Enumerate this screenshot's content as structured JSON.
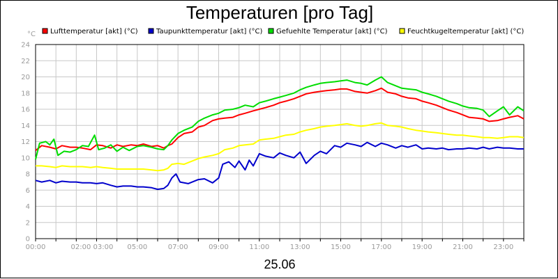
{
  "chart_data": {
    "type": "line",
    "title": "Temperaturen [pro Tag]",
    "date": "25.06",
    "y_unit": "°C",
    "ylim": [
      0,
      24
    ],
    "y_ticks": [
      0,
      2,
      4,
      6,
      8,
      10,
      12,
      14,
      16,
      18,
      20,
      22,
      24
    ],
    "xlim": [
      0,
      24
    ],
    "x_ticks": [
      {
        "x": 0,
        "label": "00:00"
      },
      {
        "x": 2,
        "label": "02:00"
      },
      {
        "x": 3,
        "label": "03:00"
      },
      {
        "x": 5,
        "label": "05:00"
      },
      {
        "x": 7,
        "label": "07:00"
      },
      {
        "x": 9,
        "label": "09:00"
      },
      {
        "x": 11,
        "label": "11:00"
      },
      {
        "x": 13,
        "label": "13:00"
      },
      {
        "x": 15,
        "label": "15:00"
      },
      {
        "x": 17,
        "label": "17:00"
      },
      {
        "x": 19,
        "label": "19:00"
      },
      {
        "x": 21,
        "label": "21:00"
      },
      {
        "x": 23,
        "label": "23:00"
      }
    ],
    "grid": true,
    "legend_position": "top",
    "series": [
      {
        "name": "Lufttemperatur [akt] (°C)",
        "color": "#ff0000",
        "points": [
          [
            0,
            10.9
          ],
          [
            0.3,
            11.5
          ],
          [
            0.7,
            11.3
          ],
          [
            1,
            11.1
          ],
          [
            1.3,
            11.5
          ],
          [
            1.7,
            11.3
          ],
          [
            2,
            11.3
          ],
          [
            2.3,
            11.2
          ],
          [
            2.7,
            11.0
          ],
          [
            3,
            11.6
          ],
          [
            3.3,
            11.5
          ],
          [
            3.7,
            11.2
          ],
          [
            4,
            11.6
          ],
          [
            4.3,
            11.4
          ],
          [
            4.7,
            11.6
          ],
          [
            5,
            11.5
          ],
          [
            5.3,
            11.7
          ],
          [
            5.7,
            11.4
          ],
          [
            6,
            11.5
          ],
          [
            6.3,
            11.2
          ],
          [
            6.5,
            11.5
          ],
          [
            6.7,
            11.7
          ],
          [
            7,
            12.5
          ],
          [
            7.3,
            13.0
          ],
          [
            7.7,
            13.2
          ],
          [
            8,
            13.8
          ],
          [
            8.3,
            14.0
          ],
          [
            8.7,
            14.6
          ],
          [
            9,
            14.8
          ],
          [
            9.3,
            14.9
          ],
          [
            9.7,
            15.0
          ],
          [
            10,
            15.3
          ],
          [
            10.3,
            15.5
          ],
          [
            10.7,
            15.8
          ],
          [
            11,
            16.0
          ],
          [
            11.3,
            16.2
          ],
          [
            11.7,
            16.5
          ],
          [
            12,
            16.8
          ],
          [
            12.3,
            17.0
          ],
          [
            12.7,
            17.3
          ],
          [
            13,
            17.6
          ],
          [
            13.3,
            17.9
          ],
          [
            13.7,
            18.1
          ],
          [
            14,
            18.2
          ],
          [
            14.3,
            18.3
          ],
          [
            14.7,
            18.4
          ],
          [
            15,
            18.5
          ],
          [
            15.3,
            18.5
          ],
          [
            15.7,
            18.2
          ],
          [
            16,
            18.1
          ],
          [
            16.3,
            18.0
          ],
          [
            16.7,
            18.3
          ],
          [
            17,
            18.6
          ],
          [
            17.3,
            18.1
          ],
          [
            17.7,
            17.9
          ],
          [
            18,
            17.6
          ],
          [
            18.3,
            17.4
          ],
          [
            18.7,
            17.3
          ],
          [
            19,
            17.0
          ],
          [
            19.3,
            16.8
          ],
          [
            19.7,
            16.5
          ],
          [
            20,
            16.2
          ],
          [
            20.3,
            15.9
          ],
          [
            20.7,
            15.6
          ],
          [
            21,
            15.3
          ],
          [
            21.3,
            15.0
          ],
          [
            21.7,
            14.9
          ],
          [
            22,
            14.8
          ],
          [
            22.3,
            14.5
          ],
          [
            22.7,
            14.6
          ],
          [
            23,
            14.8
          ],
          [
            23.3,
            15.0
          ],
          [
            23.7,
            15.2
          ],
          [
            24,
            14.8
          ]
        ]
      },
      {
        "name": "Taupunkttemperatur [akt] (°C)",
        "color": "#0000cc",
        "points": [
          [
            0,
            7.2
          ],
          [
            0.3,
            7.0
          ],
          [
            0.7,
            7.2
          ],
          [
            1,
            6.9
          ],
          [
            1.3,
            7.1
          ],
          [
            1.7,
            7.0
          ],
          [
            2,
            7.0
          ],
          [
            2.3,
            6.9
          ],
          [
            2.7,
            6.9
          ],
          [
            3,
            6.8
          ],
          [
            3.3,
            6.9
          ],
          [
            3.7,
            6.6
          ],
          [
            4,
            6.4
          ],
          [
            4.3,
            6.5
          ],
          [
            4.7,
            6.5
          ],
          [
            5,
            6.4
          ],
          [
            5.3,
            6.4
          ],
          [
            5.7,
            6.3
          ],
          [
            6,
            6.1
          ],
          [
            6.3,
            6.2
          ],
          [
            6.5,
            6.6
          ],
          [
            6.7,
            7.5
          ],
          [
            6.9,
            8.0
          ],
          [
            7.1,
            7.0
          ],
          [
            7.5,
            6.8
          ],
          [
            8,
            7.3
          ],
          [
            8.3,
            7.4
          ],
          [
            8.7,
            6.9
          ],
          [
            9,
            7.5
          ],
          [
            9.2,
            9.2
          ],
          [
            9.5,
            9.5
          ],
          [
            9.8,
            8.8
          ],
          [
            10,
            9.6
          ],
          [
            10.3,
            8.5
          ],
          [
            10.5,
            9.7
          ],
          [
            10.7,
            9.0
          ],
          [
            11,
            10.5
          ],
          [
            11.3,
            10.2
          ],
          [
            11.7,
            10.0
          ],
          [
            12,
            10.6
          ],
          [
            12.3,
            10.3
          ],
          [
            12.7,
            10.0
          ],
          [
            13,
            10.7
          ],
          [
            13.3,
            9.3
          ],
          [
            13.7,
            10.3
          ],
          [
            14,
            10.8
          ],
          [
            14.3,
            10.5
          ],
          [
            14.7,
            11.5
          ],
          [
            15,
            11.3
          ],
          [
            15.3,
            11.8
          ],
          [
            15.7,
            11.6
          ],
          [
            16,
            11.4
          ],
          [
            16.3,
            11.9
          ],
          [
            16.7,
            11.4
          ],
          [
            17,
            11.8
          ],
          [
            17.3,
            11.6
          ],
          [
            17.7,
            11.2
          ],
          [
            18,
            11.5
          ],
          [
            18.3,
            11.3
          ],
          [
            18.7,
            11.6
          ],
          [
            19,
            11.1
          ],
          [
            19.3,
            11.2
          ],
          [
            19.7,
            11.1
          ],
          [
            20,
            11.2
          ],
          [
            20.3,
            11.0
          ],
          [
            20.7,
            11.1
          ],
          [
            21,
            11.1
          ],
          [
            21.3,
            11.2
          ],
          [
            21.7,
            11.1
          ],
          [
            22,
            11.3
          ],
          [
            22.3,
            11.1
          ],
          [
            22.7,
            11.3
          ],
          [
            23,
            11.2
          ],
          [
            23.3,
            11.2
          ],
          [
            23.7,
            11.1
          ],
          [
            24,
            11.1
          ]
        ]
      },
      {
        "name": "Gefuehlte Temperatur [akt] (°C)",
        "color": "#00dd00",
        "points": [
          [
            0,
            9.8
          ],
          [
            0.2,
            11.8
          ],
          [
            0.5,
            12.0
          ],
          [
            0.7,
            11.6
          ],
          [
            0.9,
            12.3
          ],
          [
            1.1,
            10.3
          ],
          [
            1.4,
            10.8
          ],
          [
            1.7,
            10.7
          ],
          [
            2,
            11.0
          ],
          [
            2.3,
            11.5
          ],
          [
            2.6,
            11.4
          ],
          [
            2.9,
            12.8
          ],
          [
            3.1,
            11.0
          ],
          [
            3.4,
            11.2
          ],
          [
            3.7,
            11.6
          ],
          [
            4,
            10.8
          ],
          [
            4.3,
            11.3
          ],
          [
            4.6,
            10.9
          ],
          [
            5,
            11.4
          ],
          [
            5.3,
            11.5
          ],
          [
            5.7,
            11.3
          ],
          [
            6,
            11.1
          ],
          [
            6.3,
            11.0
          ],
          [
            6.5,
            11.5
          ],
          [
            6.7,
            12.2
          ],
          [
            7,
            13.0
          ],
          [
            7.3,
            13.4
          ],
          [
            7.7,
            13.8
          ],
          [
            8,
            14.5
          ],
          [
            8.3,
            14.9
          ],
          [
            8.7,
            15.3
          ],
          [
            9,
            15.5
          ],
          [
            9.3,
            15.9
          ],
          [
            9.7,
            16.0
          ],
          [
            10,
            16.2
          ],
          [
            10.3,
            16.5
          ],
          [
            10.7,
            16.3
          ],
          [
            11,
            16.8
          ],
          [
            11.3,
            17.0
          ],
          [
            11.7,
            17.3
          ],
          [
            12,
            17.5
          ],
          [
            12.3,
            17.7
          ],
          [
            12.7,
            18.0
          ],
          [
            13,
            18.4
          ],
          [
            13.3,
            18.7
          ],
          [
            13.7,
            19.0
          ],
          [
            14,
            19.2
          ],
          [
            14.3,
            19.3
          ],
          [
            14.7,
            19.4
          ],
          [
            15,
            19.5
          ],
          [
            15.3,
            19.6
          ],
          [
            15.7,
            19.3
          ],
          [
            16,
            19.2
          ],
          [
            16.3,
            19.0
          ],
          [
            16.7,
            19.6
          ],
          [
            17,
            20.0
          ],
          [
            17.3,
            19.3
          ],
          [
            17.7,
            18.9
          ],
          [
            18,
            18.6
          ],
          [
            18.3,
            18.5
          ],
          [
            18.7,
            18.4
          ],
          [
            19,
            18.1
          ],
          [
            19.3,
            17.9
          ],
          [
            19.7,
            17.6
          ],
          [
            20,
            17.3
          ],
          [
            20.3,
            17.0
          ],
          [
            20.7,
            16.7
          ],
          [
            21,
            16.4
          ],
          [
            21.3,
            16.2
          ],
          [
            21.7,
            16.1
          ],
          [
            22,
            15.9
          ],
          [
            22.3,
            15.1
          ],
          [
            22.7,
            15.8
          ],
          [
            23,
            16.3
          ],
          [
            23.3,
            15.3
          ],
          [
            23.7,
            16.3
          ],
          [
            24,
            15.8
          ]
        ]
      },
      {
        "name": "Feuchtkugeltemperatur [akt] (°C)",
        "color": "#ffff00",
        "points": [
          [
            0,
            9.0
          ],
          [
            0.3,
            9.0
          ],
          [
            0.7,
            8.9
          ],
          [
            1,
            8.8
          ],
          [
            1.3,
            9.0
          ],
          [
            1.7,
            8.9
          ],
          [
            2,
            8.9
          ],
          [
            2.3,
            8.9
          ],
          [
            2.7,
            8.8
          ],
          [
            3,
            8.9
          ],
          [
            3.3,
            8.8
          ],
          [
            3.7,
            8.7
          ],
          [
            4,
            8.6
          ],
          [
            4.3,
            8.6
          ],
          [
            4.7,
            8.6
          ],
          [
            5,
            8.6
          ],
          [
            5.3,
            8.6
          ],
          [
            5.7,
            8.5
          ],
          [
            6,
            8.4
          ],
          [
            6.3,
            8.5
          ],
          [
            6.5,
            8.7
          ],
          [
            6.7,
            9.2
          ],
          [
            7,
            9.3
          ],
          [
            7.3,
            9.2
          ],
          [
            7.7,
            9.6
          ],
          [
            8,
            9.9
          ],
          [
            8.3,
            10.1
          ],
          [
            8.7,
            10.3
          ],
          [
            9,
            10.5
          ],
          [
            9.3,
            11.0
          ],
          [
            9.7,
            11.2
          ],
          [
            10,
            11.5
          ],
          [
            10.3,
            11.6
          ],
          [
            10.7,
            11.7
          ],
          [
            11,
            12.2
          ],
          [
            11.3,
            12.3
          ],
          [
            11.7,
            12.4
          ],
          [
            12,
            12.6
          ],
          [
            12.3,
            12.8
          ],
          [
            12.7,
            12.9
          ],
          [
            13,
            13.2
          ],
          [
            13.3,
            13.4
          ],
          [
            13.7,
            13.6
          ],
          [
            14,
            13.8
          ],
          [
            14.3,
            13.9
          ],
          [
            14.7,
            14.0
          ],
          [
            15,
            14.1
          ],
          [
            15.3,
            14.2
          ],
          [
            15.7,
            14.0
          ],
          [
            16,
            13.9
          ],
          [
            16.3,
            14.0
          ],
          [
            16.7,
            14.2
          ],
          [
            17,
            14.3
          ],
          [
            17.3,
            14.0
          ],
          [
            17.7,
            13.9
          ],
          [
            18,
            13.8
          ],
          [
            18.3,
            13.6
          ],
          [
            18.7,
            13.4
          ],
          [
            19,
            13.3
          ],
          [
            19.3,
            13.2
          ],
          [
            19.7,
            13.1
          ],
          [
            20,
            13.0
          ],
          [
            20.3,
            12.9
          ],
          [
            20.7,
            12.8
          ],
          [
            21,
            12.8
          ],
          [
            21.3,
            12.7
          ],
          [
            21.7,
            12.6
          ],
          [
            22,
            12.5
          ],
          [
            22.3,
            12.5
          ],
          [
            22.7,
            12.4
          ],
          [
            23,
            12.5
          ],
          [
            23.3,
            12.6
          ],
          [
            23.7,
            12.6
          ],
          [
            24,
            12.5
          ]
        ]
      }
    ]
  }
}
